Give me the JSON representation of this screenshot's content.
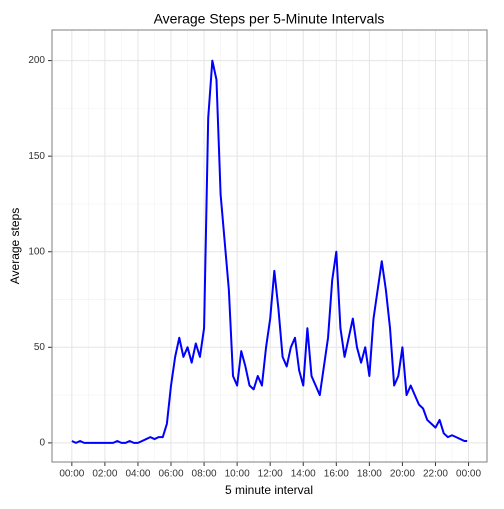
{
  "chart_data": {
    "type": "line",
    "title": "Average Steps per 5-Minute Intervals",
    "x_label": "5 minute interval",
    "y_label": "Average steps",
    "x": [
      0,
      15,
      30,
      45,
      60,
      75,
      90,
      105,
      120,
      135,
      150,
      165,
      180,
      195,
      210,
      225,
      240,
      255,
      270,
      285,
      300,
      315,
      330,
      345,
      360,
      375,
      390,
      405,
      420,
      435,
      450,
      465,
      480,
      495,
      510,
      525,
      540,
      555,
      570,
      585,
      600,
      615,
      630,
      645,
      660,
      675,
      690,
      705,
      720,
      735,
      750,
      765,
      780,
      795,
      810,
      825,
      840,
      855,
      870,
      885,
      900,
      915,
      930,
      945,
      960,
      975,
      990,
      1005,
      1020,
      1035,
      1050,
      1065,
      1080,
      1095,
      1110,
      1125,
      1140,
      1155,
      1170,
      1185,
      1200,
      1215,
      1230,
      1245,
      1260,
      1275,
      1290,
      1305,
      1320,
      1335,
      1350,
      1365,
      1380,
      1395,
      1410,
      1425,
      1435
    ],
    "series": [
      {
        "name": "Average steps",
        "color": "#0000ff",
        "values": [
          1,
          0,
          1,
          0,
          0,
          0,
          0,
          0,
          0,
          0,
          0,
          1,
          0,
          0,
          1,
          0,
          0,
          1,
          2,
          3,
          2,
          3,
          3,
          10,
          30,
          45,
          55,
          45,
          50,
          42,
          52,
          45,
          60,
          170,
          200,
          190,
          130,
          105,
          80,
          35,
          30,
          48,
          40,
          30,
          28,
          35,
          30,
          50,
          65,
          90,
          70,
          45,
          40,
          50,
          55,
          38,
          30,
          60,
          35,
          30,
          25,
          40,
          55,
          85,
          100,
          60,
          45,
          55,
          65,
          50,
          42,
          50,
          35,
          65,
          80,
          95,
          80,
          60,
          30,
          35,
          50,
          25,
          30,
          25,
          20,
          18,
          12,
          10,
          8,
          12,
          5,
          3,
          4,
          3,
          2,
          1,
          1
        ]
      }
    ],
    "xlim": [
      -72,
      1507
    ],
    "xticks": [
      {
        "value": 0,
        "label": "00:00"
      },
      {
        "value": 120,
        "label": "02:00"
      },
      {
        "value": 240,
        "label": "04:00"
      },
      {
        "value": 360,
        "label": "06:00"
      },
      {
        "value": 480,
        "label": "08:00"
      },
      {
        "value": 600,
        "label": "10:00"
      },
      {
        "value": 720,
        "label": "12:00"
      },
      {
        "value": 840,
        "label": "14:00"
      },
      {
        "value": 960,
        "label": "16:00"
      },
      {
        "value": 1080,
        "label": "18:00"
      },
      {
        "value": 1200,
        "label": "20:00"
      },
      {
        "value": 1320,
        "label": "22:00"
      },
      {
        "value": 1440,
        "label": "00:00"
      }
    ],
    "ylim": [
      -10,
      216
    ],
    "yticks": [
      0,
      50,
      100,
      150,
      200
    ],
    "grid": true
  }
}
